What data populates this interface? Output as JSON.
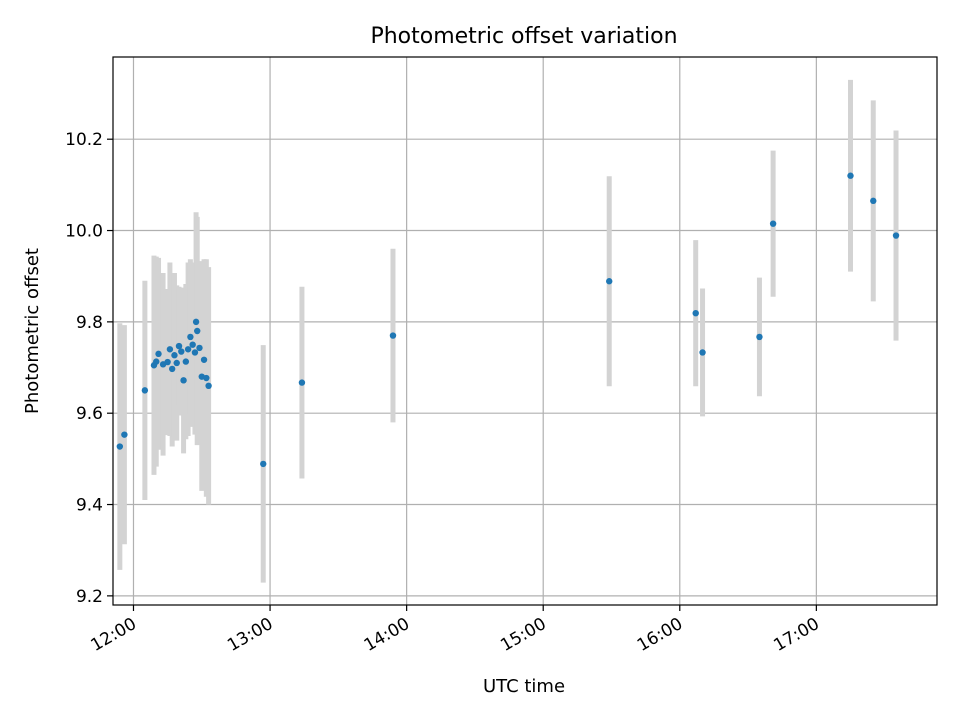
{
  "chart_data": {
    "type": "scatter",
    "title": "Photometric offset variation",
    "xlabel": "UTC time",
    "ylabel": "Photometric offset",
    "x_ticks": [
      "12:00",
      "13:00",
      "14:00",
      "15:00",
      "16:00",
      "17:00"
    ],
    "y_ticks": [
      "9.2",
      "9.4",
      "9.6",
      "9.8",
      "10.0",
      "10.2"
    ],
    "xlim": [
      "11:51",
      "17:53"
    ],
    "ylim": [
      9.18,
      10.38
    ],
    "grid": true,
    "colors": {
      "point": "#1f77b4",
      "errorbar": "#d3d3d3",
      "grid": "#b0b0b0"
    },
    "points": [
      {
        "t": "11:54",
        "y": 9.527,
        "err": 0.27
      },
      {
        "t": "11:56",
        "y": 9.553,
        "err": 0.24
      },
      {
        "t": "12:05",
        "y": 9.65,
        "err": 0.24
      },
      {
        "t": "12:09",
        "y": 9.705,
        "err": 0.24
      },
      {
        "t": "12:10",
        "y": 9.713,
        "err": 0.23
      },
      {
        "t": "12:11",
        "y": 9.73,
        "err": 0.21
      },
      {
        "t": "12:13",
        "y": 9.707,
        "err": 0.2
      },
      {
        "t": "12:15",
        "y": 9.712,
        "err": 0.16
      },
      {
        "t": "12:16",
        "y": 9.74,
        "err": 0.19
      },
      {
        "t": "12:17",
        "y": 9.697,
        "err": 0.17
      },
      {
        "t": "12:18",
        "y": 9.727,
        "err": 0.18
      },
      {
        "t": "12:19",
        "y": 9.71,
        "err": 0.17
      },
      {
        "t": "12:20",
        "y": 9.747,
        "err": 0.13
      },
      {
        "t": "12:21",
        "y": 9.735,
        "err": 0.14
      },
      {
        "t": "12:22",
        "y": 9.672,
        "err": 0.16
      },
      {
        "t": "12:23",
        "y": 9.713,
        "err": 0.17
      },
      {
        "t": "12:24",
        "y": 9.74,
        "err": 0.19
      },
      {
        "t": "12:25",
        "y": 9.767,
        "err": 0.17
      },
      {
        "t": "12:26",
        "y": 9.75,
        "err": 0.18
      },
      {
        "t": "12:27",
        "y": 9.733,
        "err": 0.18
      },
      {
        "t": "12:27.5",
        "y": 9.8,
        "err": 0.24
      },
      {
        "t": "12:28",
        "y": 9.78,
        "err": 0.25
      },
      {
        "t": "12:29",
        "y": 9.743,
        "err": 0.19
      },
      {
        "t": "12:30",
        "y": 9.68,
        "err": 0.25
      },
      {
        "t": "12:31",
        "y": 9.717,
        "err": 0.22
      },
      {
        "t": "12:32",
        "y": 9.677,
        "err": 0.26
      },
      {
        "t": "12:33",
        "y": 9.66,
        "err": 0.26
      },
      {
        "t": "12:57",
        "y": 9.489,
        "err": 0.26
      },
      {
        "t": "13:14",
        "y": 9.667,
        "err": 0.21
      },
      {
        "t": "13:54",
        "y": 9.77,
        "err": 0.19
      },
      {
        "t": "15:29",
        "y": 9.889,
        "err": 0.23
      },
      {
        "t": "16:07",
        "y": 9.819,
        "err": 0.16
      },
      {
        "t": "16:10",
        "y": 9.733,
        "err": 0.14
      },
      {
        "t": "16:35",
        "y": 9.767,
        "err": 0.13
      },
      {
        "t": "16:41",
        "y": 10.015,
        "err": 0.16
      },
      {
        "t": "17:15",
        "y": 10.12,
        "err": 0.21
      },
      {
        "t": "17:25",
        "y": 10.065,
        "err": 0.22
      },
      {
        "t": "17:35",
        "y": 9.989,
        "err": 0.23
      }
    ]
  }
}
